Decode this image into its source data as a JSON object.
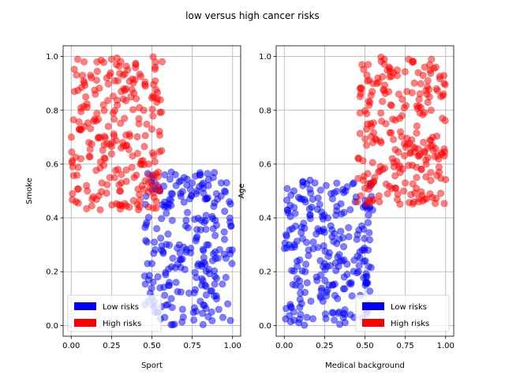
{
  "figure": {
    "title": "low versus high cancer risks"
  },
  "chart_data": [
    {
      "type": "scatter",
      "xlabel": "Sport",
      "ylabel": "Smoke",
      "xlim": [
        -0.05,
        1.05
      ],
      "ylim": [
        -0.04,
        1.04
      ],
      "xticks": [
        "0.00",
        "0.25",
        "0.50",
        "0.75",
        "1.00"
      ],
      "yticks": [
        "0.0",
        "0.2",
        "0.4",
        "0.6",
        "0.8",
        "1.0"
      ],
      "grid": true,
      "legend_position": "lower-left",
      "series": [
        {
          "name": "Low risks",
          "color": "#0000ff",
          "approx_count": 250,
          "x_range": [
            0.45,
            1.0
          ],
          "y_range": [
            0.0,
            0.57
          ],
          "points": [
            [
              0.46,
              0.45
            ],
            [
              0.48,
              0.17
            ],
            [
              0.5,
              0.55
            ],
            [
              0.52,
              0.53
            ],
            [
              0.55,
              0.5
            ],
            [
              0.58,
              0.56
            ],
            [
              0.6,
              0.44
            ],
            [
              0.62,
              0.57
            ],
            [
              0.65,
              0.52
            ],
            [
              0.68,
              0.48
            ],
            [
              0.7,
              0.55
            ],
            [
              0.72,
              0.42
            ],
            [
              0.75,
              0.53
            ],
            [
              0.78,
              0.5
            ],
            [
              0.8,
              0.56
            ],
            [
              0.83,
              0.47
            ],
            [
              0.85,
              0.52
            ],
            [
              0.88,
              0.55
            ],
            [
              0.9,
              0.49
            ],
            [
              0.93,
              0.53
            ],
            [
              0.95,
              0.5
            ],
            [
              0.98,
              0.46
            ],
            [
              0.47,
              0.31
            ],
            [
              0.5,
              0.23
            ],
            [
              0.53,
              0.36
            ],
            [
              0.56,
              0.28
            ],
            [
              0.6,
              0.34
            ],
            [
              0.63,
              0.25
            ],
            [
              0.67,
              0.3
            ],
            [
              0.71,
              0.37
            ],
            [
              0.74,
              0.27
            ],
            [
              0.78,
              0.33
            ],
            [
              0.81,
              0.22
            ],
            [
              0.84,
              0.3
            ],
            [
              0.88,
              0.36
            ],
            [
              0.91,
              0.25
            ],
            [
              0.95,
              0.32
            ],
            [
              0.98,
              0.28
            ],
            [
              0.49,
              0.12
            ],
            [
              0.52,
              0.05
            ],
            [
              0.55,
              0.14
            ],
            [
              0.58,
              0.03
            ],
            [
              0.62,
              0.1
            ],
            [
              0.65,
              0.16
            ],
            [
              0.69,
              0.06
            ],
            [
              0.73,
              0.12
            ],
            [
              0.76,
              0.02
            ],
            [
              0.8,
              0.09
            ],
            [
              0.83,
              0.15
            ],
            [
              0.87,
              0.05
            ],
            [
              0.9,
              0.11
            ],
            [
              0.94,
              0.03
            ],
            [
              0.97,
              0.08
            ],
            [
              0.99,
              0.37
            ]
          ]
        },
        {
          "name": "High risks",
          "color": "#ff0000",
          "approx_count": 250,
          "x_range": [
            0.0,
            0.57
          ],
          "y_range": [
            0.43,
            1.0
          ],
          "points": [
            [
              0.02,
              0.87
            ],
            [
              0.04,
              0.99
            ],
            [
              0.06,
              0.62
            ],
            [
              0.08,
              0.98
            ],
            [
              0.1,
              0.5
            ],
            [
              0.12,
              0.93
            ],
            [
              0.14,
              0.76
            ],
            [
              0.16,
              0.98
            ],
            [
              0.18,
              0.43
            ],
            [
              0.2,
              0.82
            ],
            [
              0.22,
              0.92
            ],
            [
              0.24,
              0.55
            ],
            [
              0.26,
              0.79
            ],
            [
              0.28,
              0.97
            ],
            [
              0.3,
              0.5
            ],
            [
              0.32,
              0.68
            ],
            [
              0.34,
              0.88
            ],
            [
              0.36,
              0.44
            ],
            [
              0.38,
              0.63
            ],
            [
              0.4,
              0.97
            ],
            [
              0.42,
              0.75
            ],
            [
              0.44,
              0.52
            ],
            [
              0.46,
              0.89
            ],
            [
              0.48,
              0.6
            ],
            [
              0.5,
              0.73
            ],
            [
              0.52,
              0.96
            ],
            [
              0.54,
              0.57
            ],
            [
              0.56,
              0.65
            ],
            [
              0.01,
              0.59
            ],
            [
              0.05,
              0.73
            ],
            [
              0.09,
              0.85
            ],
            [
              0.13,
              0.47
            ],
            [
              0.17,
              0.7
            ],
            [
              0.21,
              0.62
            ],
            [
              0.25,
              0.99
            ],
            [
              0.29,
              0.58
            ],
            [
              0.33,
              0.77
            ],
            [
              0.37,
              0.85
            ],
            [
              0.41,
              0.45
            ],
            [
              0.45,
              0.8
            ],
            [
              0.49,
              0.51
            ],
            [
              0.53,
              0.83
            ],
            [
              0.03,
              0.46
            ],
            [
              0.07,
              0.93
            ],
            [
              0.11,
              0.68
            ],
            [
              0.15,
              0.86
            ],
            [
              0.19,
              0.53
            ],
            [
              0.23,
              0.74
            ],
            [
              0.27,
              0.91
            ],
            [
              0.31,
              0.66
            ],
            [
              0.35,
              0.95
            ],
            [
              0.39,
              0.55
            ]
          ]
        }
      ]
    },
    {
      "type": "scatter",
      "xlabel": "Medical background",
      "ylabel": "Age",
      "xlim": [
        -0.05,
        1.05
      ],
      "ylim": [
        -0.04,
        1.04
      ],
      "xticks": [
        "0.00",
        "0.25",
        "0.50",
        "0.75",
        "1.00"
      ],
      "yticks": [
        "0.0",
        "0.2",
        "0.4",
        "0.6",
        "0.8",
        "1.0"
      ],
      "grid": true,
      "legend_position": "lower-right",
      "series": [
        {
          "name": "Low risks",
          "color": "#0000ff",
          "approx_count": 250,
          "x_range": [
            0.0,
            0.55
          ],
          "y_range": [
            0.0,
            0.55
          ],
          "points": [
            [
              0.02,
              0.43
            ],
            [
              0.04,
              0.07
            ],
            [
              0.06,
              0.5
            ],
            [
              0.08,
              0.22
            ],
            [
              0.1,
              0.12
            ],
            [
              0.12,
              0.38
            ],
            [
              0.14,
              0.03
            ],
            [
              0.16,
              0.54
            ],
            [
              0.18,
              0.31
            ],
            [
              0.2,
              0.18
            ],
            [
              0.22,
              0.45
            ],
            [
              0.24,
              0.09
            ],
            [
              0.26,
              0.52
            ],
            [
              0.28,
              0.27
            ],
            [
              0.3,
              0.15
            ],
            [
              0.32,
              0.41
            ],
            [
              0.34,
              0.05
            ],
            [
              0.36,
              0.24
            ],
            [
              0.38,
              0.5
            ],
            [
              0.4,
              0.33
            ],
            [
              0.42,
              0.11
            ],
            [
              0.44,
              0.46
            ],
            [
              0.46,
              0.2
            ],
            [
              0.48,
              0.37
            ],
            [
              0.5,
              0.06
            ],
            [
              0.52,
              0.28
            ],
            [
              0.54,
              0.48
            ],
            [
              0.03,
              0.3
            ],
            [
              0.07,
              0.15
            ],
            [
              0.11,
              0.47
            ],
            [
              0.15,
              0.26
            ],
            [
              0.19,
              0.53
            ],
            [
              0.23,
              0.13
            ],
            [
              0.27,
              0.4
            ],
            [
              0.31,
              0.02
            ],
            [
              0.35,
              0.35
            ],
            [
              0.39,
              0.19
            ],
            [
              0.43,
              0.53
            ],
            [
              0.47,
              0.25
            ],
            [
              0.51,
              0.16
            ],
            [
              0.05,
              0.36
            ],
            [
              0.09,
              0.01
            ],
            [
              0.13,
              0.2
            ],
            [
              0.17,
              0.44
            ],
            [
              0.21,
              0.29
            ],
            [
              0.25,
              0.23
            ],
            [
              0.29,
              0.49
            ],
            [
              0.33,
              0.1
            ],
            [
              0.37,
              0.42
            ],
            [
              0.41,
              0.04
            ],
            [
              0.45,
              0.32
            ],
            [
              0.49,
              0.44
            ]
          ]
        },
        {
          "name": "High risks",
          "color": "#ff0000",
          "approx_count": 250,
          "x_range": [
            0.45,
            1.0
          ],
          "y_range": [
            0.45,
            1.0
          ],
          "points": [
            [
              0.46,
              0.62
            ],
            [
              0.48,
              0.88
            ],
            [
              0.5,
              0.51
            ],
            [
              0.52,
              0.97
            ],
            [
              0.54,
              0.74
            ],
            [
              0.56,
              0.55
            ],
            [
              0.58,
              0.92
            ],
            [
              0.6,
              0.68
            ],
            [
              0.62,
              0.99
            ],
            [
              0.64,
              0.49
            ],
            [
              0.66,
              0.82
            ],
            [
              0.68,
              0.59
            ],
            [
              0.7,
              0.95
            ],
            [
              0.72,
              0.72
            ],
            [
              0.74,
              0.5
            ],
            [
              0.76,
              0.87
            ],
            [
              0.78,
              0.64
            ],
            [
              0.8,
              0.98
            ],
            [
              0.82,
              0.55
            ],
            [
              0.84,
              0.79
            ],
            [
              0.86,
              0.93
            ],
            [
              0.88,
              0.6
            ],
            [
              0.9,
              0.85
            ],
            [
              0.92,
              0.7
            ],
            [
              0.94,
              0.96
            ],
            [
              0.96,
              0.57
            ],
            [
              0.98,
              0.77
            ],
            [
              0.47,
              0.79
            ],
            [
              0.51,
              0.67
            ],
            [
              0.55,
              0.9
            ],
            [
              0.59,
              0.46
            ],
            [
              0.63,
              0.75
            ],
            [
              0.67,
              0.62
            ],
            [
              0.71,
              0.86
            ],
            [
              0.75,
              0.53
            ],
            [
              0.79,
              0.69
            ],
            [
              0.83,
              0.94
            ],
            [
              0.87,
              0.47
            ],
            [
              0.91,
              0.8
            ],
            [
              0.95,
              0.63
            ],
            [
              0.99,
              0.9
            ],
            [
              0.49,
              0.54
            ],
            [
              0.53,
              0.83
            ],
            [
              0.57,
              0.69
            ],
            [
              0.61,
              0.58
            ],
            [
              0.65,
              0.96
            ],
            [
              0.69,
              0.51
            ],
            [
              0.73,
              0.78
            ],
            [
              0.77,
              0.99
            ],
            [
              0.81,
              0.66
            ],
            [
              0.85,
              0.58
            ],
            [
              0.89,
              0.91
            ]
          ]
        }
      ]
    }
  ]
}
